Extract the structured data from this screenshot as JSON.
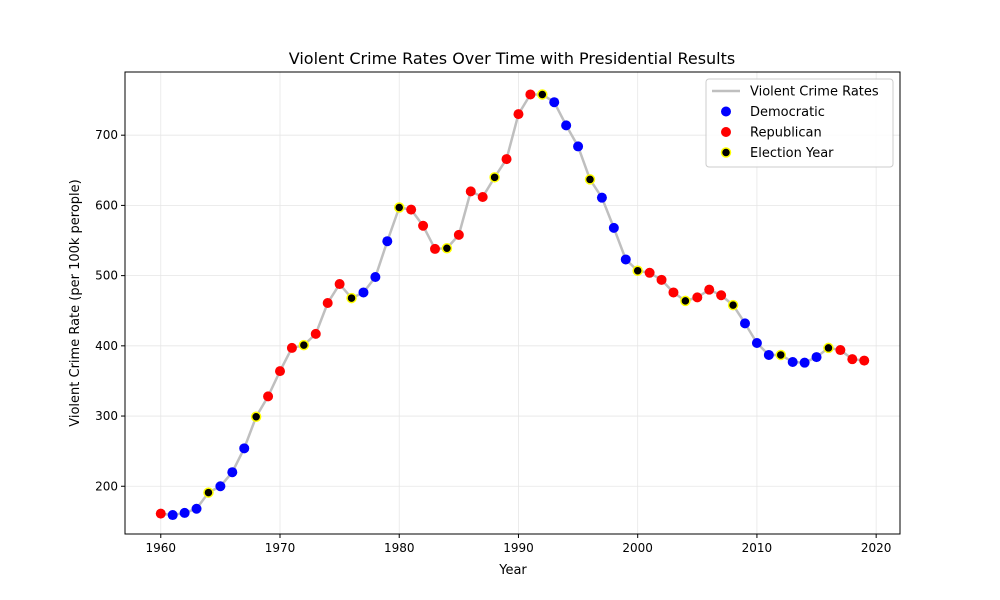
{
  "chart_data": {
    "type": "line",
    "title": "Violent Crime Rates Over Time with Presidential Results",
    "xlabel": "Year",
    "ylabel": "Violent Crime Rate (per 100k perople)",
    "xlim": [
      1957,
      2022
    ],
    "ylim": [
      132,
      790
    ],
    "xticks": [
      1960,
      1970,
      1980,
      1990,
      2000,
      2010,
      2020
    ],
    "yticks": [
      200,
      300,
      400,
      500,
      600,
      700
    ],
    "grid": true,
    "legend_position": "top-right",
    "legend": [
      {
        "label": "Violent Crime Rates",
        "kind": "line",
        "color": "#bfbfbf"
      },
      {
        "label": "Democratic",
        "kind": "marker",
        "color": "#0000ff"
      },
      {
        "label": "Republican",
        "kind": "marker",
        "color": "#ff0000"
      },
      {
        "label": "Election Year",
        "kind": "marker",
        "color": "#000000",
        "edge": "#ffff00"
      }
    ],
    "colors": {
      "line": "#bfbfbf",
      "Democratic": "#0000ff",
      "Republican": "#ff0000",
      "election_face": "#000000",
      "election_edge": "#ffff00"
    },
    "x": [
      1960,
      1961,
      1962,
      1963,
      1964,
      1965,
      1966,
      1967,
      1968,
      1969,
      1970,
      1971,
      1972,
      1973,
      1974,
      1975,
      1976,
      1977,
      1978,
      1979,
      1980,
      1981,
      1982,
      1983,
      1984,
      1985,
      1986,
      1987,
      1988,
      1989,
      1990,
      1991,
      1992,
      1993,
      1994,
      1995,
      1996,
      1997,
      1998,
      1999,
      2000,
      2001,
      2002,
      2003,
      2004,
      2005,
      2006,
      2007,
      2008,
      2009,
      2010,
      2011,
      2012,
      2013,
      2014,
      2015,
      2016,
      2017,
      2018,
      2019
    ],
    "y": [
      161,
      159,
      162,
      168,
      191,
      200,
      220,
      254,
      299,
      328,
      364,
      397,
      401,
      417,
      461,
      488,
      468,
      476,
      498,
      549,
      597,
      594,
      571,
      538,
      539,
      558,
      620,
      612,
      640,
      666,
      730,
      758,
      758,
      747,
      714,
      684,
      637,
      611,
      568,
      523,
      507,
      504,
      494,
      476,
      464,
      469,
      480,
      472,
      458,
      432,
      404,
      387,
      387,
      377,
      376,
      384,
      397,
      394,
      381,
      379
    ],
    "party": [
      "R",
      "D",
      "D",
      "D",
      "E",
      "D",
      "D",
      "D",
      "E",
      "R",
      "R",
      "R",
      "E",
      "R",
      "R",
      "R",
      "E",
      "D",
      "D",
      "D",
      "E",
      "R",
      "R",
      "R",
      "E",
      "R",
      "R",
      "R",
      "E",
      "R",
      "R",
      "R",
      "E",
      "D",
      "D",
      "D",
      "E",
      "D",
      "D",
      "D",
      "E",
      "R",
      "R",
      "R",
      "E",
      "R",
      "R",
      "R",
      "E",
      "D",
      "D",
      "D",
      "E",
      "D",
      "D",
      "D",
      "E",
      "R",
      "R",
      "R"
    ]
  }
}
